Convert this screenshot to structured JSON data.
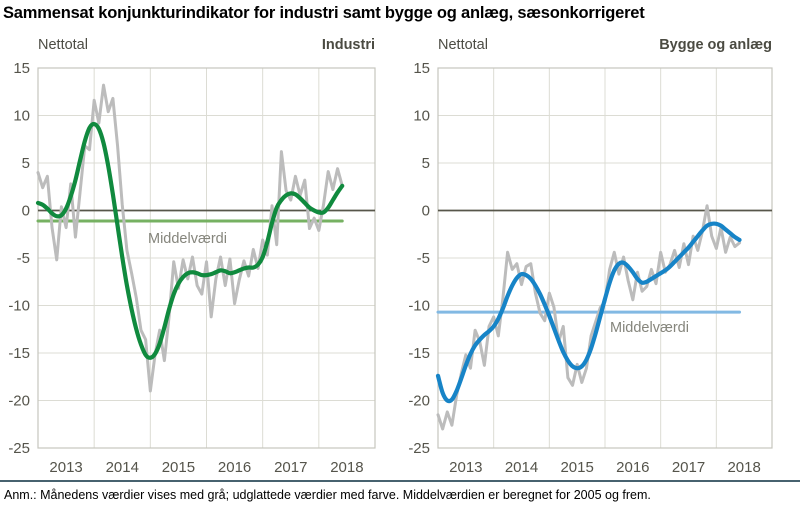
{
  "page_title": "Sammensat konjunkturindikator for industri samt bygge og anlæg, sæsonkorrigeret",
  "footnote": "Anm.: Månedens værdier vises med grå; udglattede værdier med farve. Middelværdien er beregnet for 2005 og frem.",
  "colors": {
    "background": "#ffffff",
    "grid": "#dcdcd4",
    "plot_border": "#c6c6bd",
    "zero_line": "#57564a",
    "axis_text": "#55544b",
    "mean_label_text": "#85857c",
    "divider": "#47626f"
  },
  "chart_data": [
    {
      "type": "line",
      "title": "Industri",
      "unit_label": "Nettotal",
      "mean_label": "Middelværdi",
      "mean_value": -1.1,
      "ylim": [
        -25,
        15
      ],
      "yticks": [
        15,
        10,
        5,
        0,
        -5,
        -10,
        -15,
        -20,
        -25
      ],
      "x_tick_labels": [
        "2013",
        "2014",
        "2015",
        "2016",
        "2017",
        "2018"
      ],
      "x_axis_years": [
        2013,
        2019
      ],
      "x_start": "2013-01",
      "x_end": "2018-06",
      "grid": true,
      "legend_position": "none",
      "colors": {
        "smooth": "#108a3e",
        "mean": "#76b162",
        "raw": "#bcbcbc"
      },
      "series": [
        {
          "name": "Månedens værdier (grå)",
          "values": [
            4.0,
            2.4,
            3.6,
            -1.8,
            -5.2,
            0.4,
            -1.8,
            2.8,
            -2.8,
            2.0,
            6.8,
            6.4,
            11.6,
            9.2,
            13.2,
            10.4,
            11.8,
            6.8,
            0.6,
            -4.2,
            -6.6,
            -9.2,
            -12.6,
            -13.6,
            -19.0,
            -15.2,
            -12.6,
            -15.8,
            -11.2,
            -5.4,
            -8.2,
            -5.2,
            -7.2,
            -4.9,
            -7.9,
            -8.8,
            -5.4,
            -11.2,
            -7.2,
            -4.9,
            -7.9,
            -5.1,
            -9.8,
            -7.3,
            -5.3,
            -6.9,
            -4.1,
            -6.1,
            -3.1,
            -4.7,
            0.5,
            -3.6,
            6.2,
            2.1,
            1.1,
            3.6,
            1.6,
            3.2,
            -1.9,
            -0.8,
            -2.1,
            0.6,
            4.1,
            2.2,
            4.4,
            2.6
          ]
        },
        {
          "name": "Udglattede værdier (grøn)",
          "values": [
            0.8,
            0.6,
            0.2,
            -0.3,
            -0.6,
            -0.5,
            0.2,
            1.5,
            3.2,
            5.3,
            7.3,
            8.7,
            9.1,
            8.6,
            7.1,
            4.7,
            1.7,
            -1.6,
            -4.9,
            -7.9,
            -10.4,
            -12.5,
            -14.1,
            -15.2,
            -15.5,
            -15.1,
            -14.0,
            -12.3,
            -10.4,
            -8.8,
            -7.7,
            -7.0,
            -6.6,
            -6.5,
            -6.6,
            -6.8,
            -6.8,
            -6.7,
            -6.5,
            -6.3,
            -6.4,
            -6.6,
            -6.5,
            -6.3,
            -6.1,
            -6.0,
            -6.0,
            -5.7,
            -4.9,
            -3.3,
            -1.3,
            0.3,
            1.1,
            1.6,
            1.8,
            1.7,
            1.3,
            0.8,
            0.3,
            0.0,
            -0.2,
            -0.2,
            0.3,
            1.1,
            1.9,
            2.6
          ]
        }
      ]
    },
    {
      "type": "line",
      "title": "Bygge og anlæg",
      "unit_label": "Nettotal",
      "mean_label": "Middelværdi",
      "mean_value": -10.7,
      "ylim": [
        -25,
        15
      ],
      "yticks": [
        15,
        10,
        5,
        0,
        -5,
        -10,
        -15,
        -20,
        -25
      ],
      "x_tick_labels": [
        "2013",
        "2014",
        "2015",
        "2016",
        "2017",
        "2018"
      ],
      "x_axis_years": [
        2013,
        2019
      ],
      "x_start": "2013-01",
      "x_end": "2018-06",
      "grid": true,
      "legend_position": "none",
      "colors": {
        "smooth": "#1784c7",
        "mean": "#82b9e3",
        "raw": "#bcbcbc"
      },
      "series": [
        {
          "name": "Månedens værdier (grå)",
          "values": [
            -21.5,
            -23.0,
            -21.2,
            -22.6,
            -19.5,
            -17.2,
            -15.2,
            -16.6,
            -12.6,
            -13.8,
            -16.3,
            -12.2,
            -11.2,
            -13.2,
            -9.2,
            -4.4,
            -6.2,
            -5.6,
            -7.8,
            -5.9,
            -5.6,
            -8.7,
            -10.8,
            -11.6,
            -8.7,
            -10.2,
            -13.8,
            -12.2,
            -17.6,
            -18.4,
            -16.2,
            -18.1,
            -16.6,
            -13.2,
            -11.7,
            -10.2,
            -9.6,
            -6.2,
            -4.4,
            -6.7,
            -4.9,
            -7.4,
            -9.4,
            -6.5,
            -8.5,
            -8.0,
            -6.2,
            -7.7,
            -4.4,
            -6.5,
            -5.7,
            -4.2,
            -6.0,
            -3.5,
            -5.7,
            -2.7,
            -4.2,
            -2.2,
            0.5,
            -2.7,
            -4.0,
            -1.8,
            -4.4,
            -2.8,
            -3.8,
            -3.4
          ]
        },
        {
          "name": "Udglattede værdier (blå)",
          "values": [
            -17.4,
            -19.2,
            -20.0,
            -19.9,
            -19.0,
            -17.7,
            -16.3,
            -15.1,
            -14.2,
            -13.6,
            -13.1,
            -12.7,
            -12.2,
            -11.4,
            -10.3,
            -9.0,
            -7.9,
            -7.1,
            -6.7,
            -6.8,
            -7.2,
            -7.9,
            -8.8,
            -9.9,
            -11.1,
            -12.4,
            -13.7,
            -14.9,
            -15.8,
            -16.4,
            -16.6,
            -16.4,
            -15.7,
            -14.5,
            -12.9,
            -11.1,
            -9.3,
            -7.6,
            -6.3,
            -5.6,
            -5.5,
            -5.9,
            -6.5,
            -7.2,
            -7.6,
            -7.5,
            -7.2,
            -6.9,
            -6.6,
            -6.3,
            -5.9,
            -5.4,
            -4.9,
            -4.4,
            -3.9,
            -3.3,
            -2.7,
            -2.1,
            -1.6,
            -1.4,
            -1.4,
            -1.6,
            -2.0,
            -2.4,
            -2.8,
            -3.1
          ]
        }
      ]
    }
  ]
}
